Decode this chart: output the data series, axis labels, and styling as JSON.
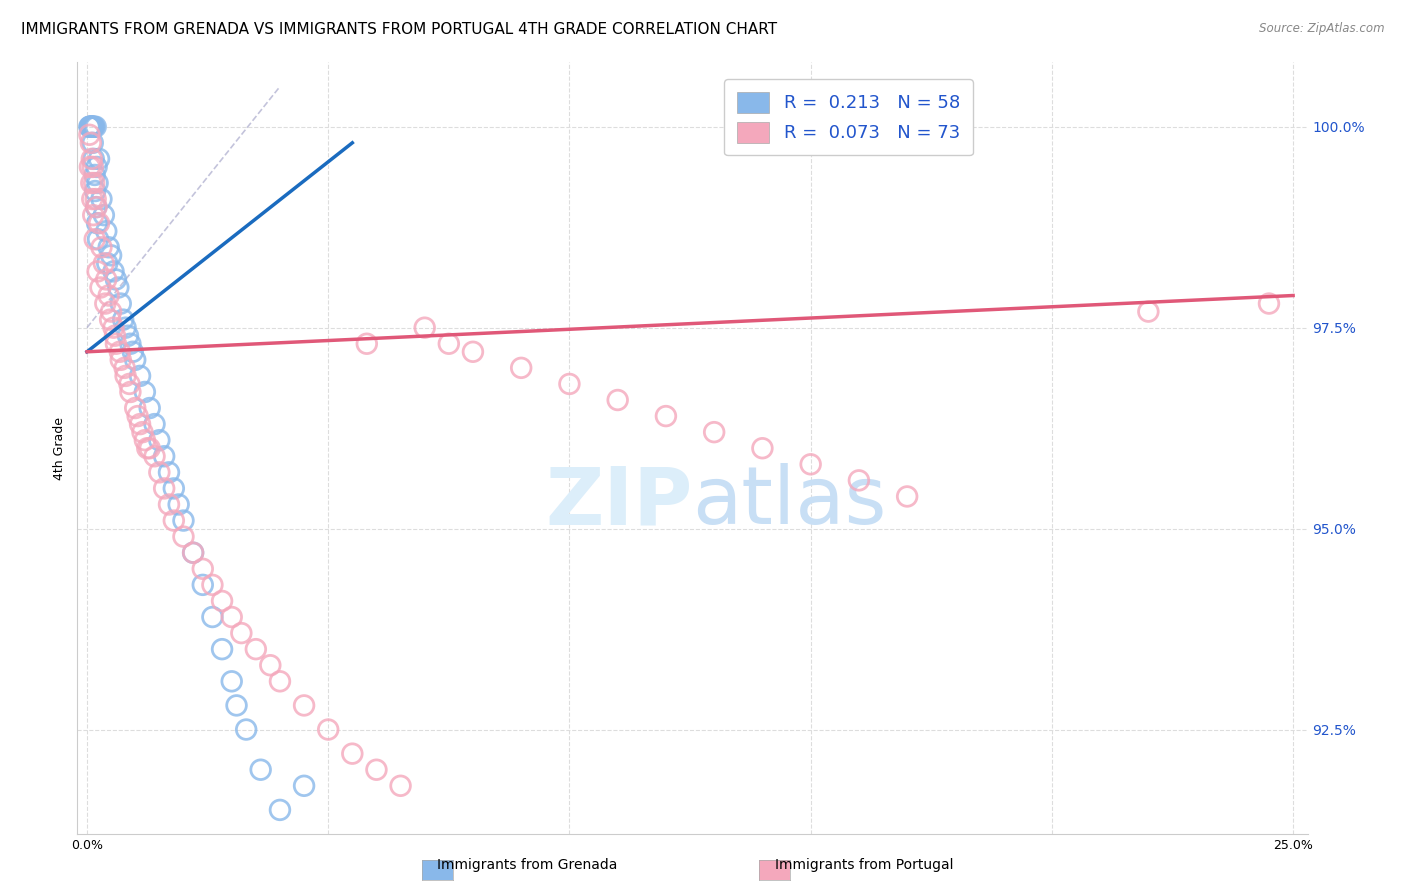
{
  "title": "IMMIGRANTS FROM GRENADA VS IMMIGRANTS FROM PORTUGAL 4TH GRADE CORRELATION CHART",
  "source_text": "Source: ZipAtlas.com",
  "ylabel": "4th Grade",
  "x_min": 0.0,
  "x_max": 25.0,
  "y_min": 91.2,
  "y_max": 100.8,
  "x_ticks": [
    0.0,
    5.0,
    10.0,
    15.0,
    20.0,
    25.0
  ],
  "x_tick_labels": [
    "0.0%",
    "",
    "",
    "",
    "",
    "25.0%"
  ],
  "y_ticks": [
    92.5,
    95.0,
    97.5,
    100.0
  ],
  "y_tick_labels": [
    "92.5%",
    "95.0%",
    "97.5%",
    "100.0%"
  ],
  "grenada_R": "0.213",
  "grenada_N": "58",
  "portugal_R": "0.073",
  "portugal_N": "73",
  "grenada_color": "#89b8ea",
  "portugal_color": "#f4a8bc",
  "grenada_line_color": "#1a6bbf",
  "portugal_line_color": "#e05878",
  "legend_label_grenada": "Immigrants from Grenada",
  "legend_label_portugal": "Immigrants from Portugal",
  "watermark_color": "#dceefa",
  "title_fontsize": 11,
  "axis_label_fontsize": 9,
  "tick_fontsize": 9,
  "source_fontsize": 8.5,
  "grenada_line_x0": 0.0,
  "grenada_line_y0": 97.2,
  "grenada_line_x1": 5.5,
  "grenada_line_y1": 99.8,
  "portugal_line_x0": 0.0,
  "portugal_line_y0": 97.2,
  "portugal_line_x1": 25.0,
  "portugal_line_y1": 97.9,
  "diag_x0": 0.0,
  "diag_y0": 97.5,
  "diag_x1": 4.0,
  "diag_y1": 100.5,
  "grenada_pts_x": [
    0.05,
    0.08,
    0.09,
    0.1,
    0.11,
    0.12,
    0.13,
    0.15,
    0.18,
    0.2,
    0.22,
    0.25,
    0.3,
    0.35,
    0.4,
    0.45,
    0.5,
    0.55,
    0.6,
    0.65,
    0.7,
    0.75,
    0.8,
    0.85,
    0.9,
    0.95,
    1.0,
    1.1,
    1.2,
    1.3,
    1.4,
    1.5,
    1.6,
    1.7,
    1.8,
    1.9,
    2.0,
    2.2,
    2.4,
    2.6,
    2.8,
    3.0,
    3.3,
    3.6,
    4.0,
    4.5,
    0.06,
    0.07,
    0.08,
    0.12,
    0.14,
    0.16,
    0.17,
    0.19,
    0.21,
    0.23,
    0.42,
    3.1
  ],
  "grenada_pts_y": [
    100.0,
    100.0,
    100.0,
    100.0,
    100.0,
    100.0,
    100.0,
    100.0,
    100.0,
    99.5,
    99.3,
    99.6,
    99.1,
    98.9,
    98.7,
    98.5,
    98.4,
    98.2,
    98.1,
    98.0,
    97.8,
    97.6,
    97.5,
    97.4,
    97.3,
    97.2,
    97.1,
    96.9,
    96.7,
    96.5,
    96.3,
    96.1,
    95.9,
    95.7,
    95.5,
    95.3,
    95.1,
    94.7,
    94.3,
    93.9,
    93.5,
    93.1,
    92.5,
    92.0,
    91.5,
    91.8,
    100.0,
    100.0,
    100.0,
    99.8,
    99.6,
    99.4,
    99.2,
    99.0,
    98.8,
    98.6,
    98.3,
    92.8
  ],
  "portugal_pts_x": [
    0.05,
    0.08,
    0.1,
    0.12,
    0.15,
    0.18,
    0.2,
    0.25,
    0.3,
    0.35,
    0.4,
    0.45,
    0.5,
    0.55,
    0.6,
    0.7,
    0.8,
    0.9,
    1.0,
    1.1,
    1.2,
    1.3,
    1.4,
    1.5,
    1.6,
    1.7,
    1.8,
    2.0,
    2.2,
    2.4,
    2.6,
    2.8,
    3.0,
    3.2,
    3.5,
    3.8,
    4.0,
    4.5,
    5.0,
    5.5,
    6.0,
    6.5,
    7.0,
    7.5,
    8.0,
    9.0,
    10.0,
    11.0,
    12.0,
    13.0,
    14.0,
    15.0,
    16.0,
    17.0,
    0.06,
    0.09,
    0.11,
    0.13,
    0.16,
    0.22,
    0.28,
    0.38,
    0.48,
    0.58,
    0.68,
    0.78,
    0.88,
    1.05,
    1.15,
    1.25,
    5.8,
    22.0,
    24.5
  ],
  "portugal_pts_y": [
    99.9,
    99.8,
    99.6,
    99.5,
    99.3,
    99.1,
    99.0,
    98.8,
    98.5,
    98.3,
    98.1,
    97.9,
    97.7,
    97.5,
    97.3,
    97.1,
    96.9,
    96.7,
    96.5,
    96.3,
    96.1,
    96.0,
    95.9,
    95.7,
    95.5,
    95.3,
    95.1,
    94.9,
    94.7,
    94.5,
    94.3,
    94.1,
    93.9,
    93.7,
    93.5,
    93.3,
    93.1,
    92.8,
    92.5,
    92.2,
    92.0,
    91.8,
    97.5,
    97.3,
    97.2,
    97.0,
    96.8,
    96.6,
    96.4,
    96.2,
    96.0,
    95.8,
    95.6,
    95.4,
    99.5,
    99.3,
    99.1,
    98.9,
    98.6,
    98.2,
    98.0,
    97.8,
    97.6,
    97.4,
    97.2,
    97.0,
    96.8,
    96.4,
    96.2,
    96.0,
    97.3,
    97.7,
    97.8
  ]
}
